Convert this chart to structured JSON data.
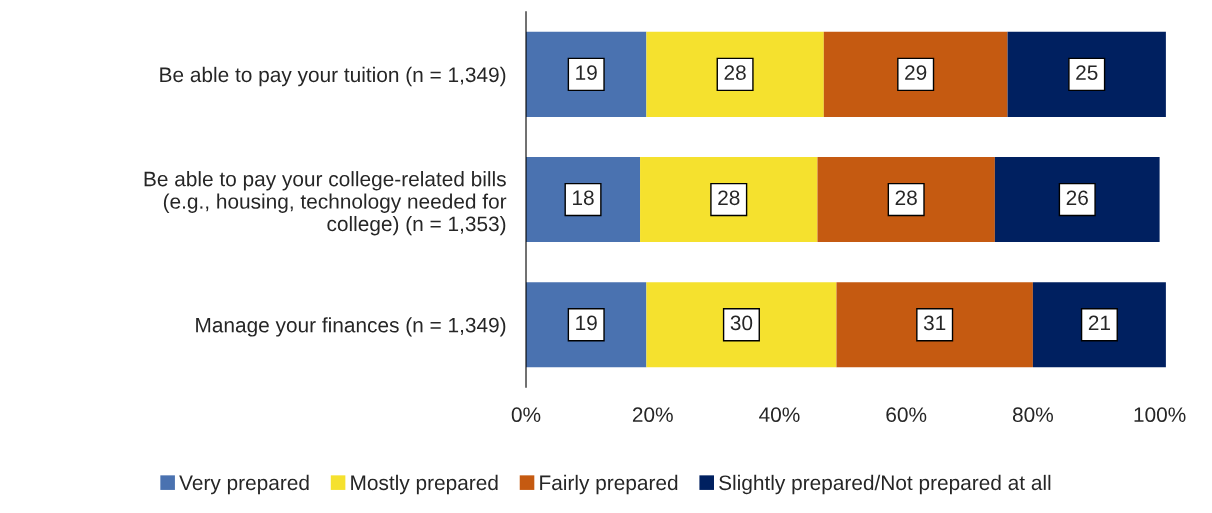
{
  "chart_data": {
    "type": "bar",
    "orientation": "horizontal",
    "stacked": true,
    "data_labels": true,
    "categories": [
      "Be able to pay your tuition (n = 1,349)",
      "Be able to pay your college-related bills\n(e.g., housing, technology needed for\ncollege) (n = 1,353)",
      "Manage your finances (n = 1,349)"
    ],
    "series": [
      {
        "name": "Very prepared",
        "color": "#4a72b0",
        "values": [
          19,
          18,
          19
        ]
      },
      {
        "name": "Mostly prepared",
        "color": "#f5e12e",
        "values": [
          28,
          28,
          30
        ]
      },
      {
        "name": "Fairly prepared",
        "color": "#c55a11",
        "values": [
          29,
          28,
          31
        ]
      },
      {
        "name": "Slightly prepared/Not prepared at all",
        "color": "#002060",
        "values": [
          25,
          26,
          21
        ]
      }
    ],
    "xlim": [
      0,
      101
    ],
    "xticks": [
      {
        "value": 0,
        "label": "0%"
      },
      {
        "value": 20,
        "label": "20%"
      },
      {
        "value": 40,
        "label": "40%"
      },
      {
        "value": 60,
        "label": "60%"
      },
      {
        "value": 80,
        "label": "80%"
      },
      {
        "value": 100,
        "label": "100%"
      }
    ],
    "grid": false,
    "legend": "bottom"
  }
}
